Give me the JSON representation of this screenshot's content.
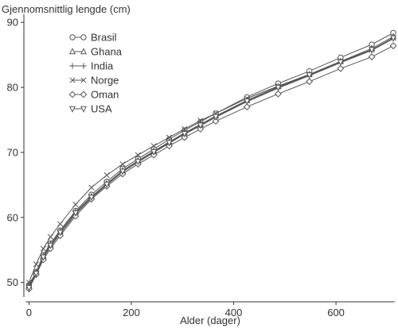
{
  "chart_data": {
    "type": "line",
    "ylabel": "Gjennomsnittlig lengde (cm)",
    "xlabel": "Alder (dager)",
    "xlim": [
      -10,
      715
    ],
    "ylim": [
      48,
      91
    ],
    "xticks": [
      0,
      200,
      400,
      600
    ],
    "yticks": [
      50,
      60,
      70,
      80,
      90
    ],
    "grid": false,
    "legend_position": "top-left",
    "line_color": "#555555",
    "x": [
      0,
      14,
      28,
      42,
      61,
      91,
      122,
      152,
      183,
      213,
      244,
      274,
      304,
      335,
      365,
      426,
      487,
      548,
      609,
      670,
      712
    ],
    "series": [
      {
        "name": "Brasil",
        "marker": "circle",
        "values": [
          49.6,
          51.6,
          54.2,
          56.0,
          58.0,
          61.0,
          63.5,
          65.5,
          67.5,
          69.0,
          70.5,
          72.0,
          73.4,
          74.7,
          76.0,
          78.5,
          80.6,
          82.5,
          84.6,
          86.6,
          88.4
        ]
      },
      {
        "name": "Ghana",
        "marker": "triangle-up",
        "values": [
          49.5,
          51.5,
          54.0,
          55.8,
          57.8,
          60.8,
          63.2,
          65.2,
          67.2,
          68.7,
          70.2,
          71.6,
          73.0,
          74.3,
          75.6,
          78.0,
          80.1,
          82.0,
          84.0,
          86.0,
          87.8
        ]
      },
      {
        "name": "India",
        "marker": "plus",
        "values": [
          49.3,
          51.3,
          53.8,
          55.5,
          57.5,
          60.5,
          63.0,
          65.0,
          67.0,
          68.5,
          70.0,
          71.4,
          72.8,
          74.1,
          75.4,
          77.8,
          79.9,
          81.8,
          83.8,
          85.7,
          87.5
        ]
      },
      {
        "name": "Norge",
        "marker": "cross",
        "values": [
          50.0,
          52.8,
          55.2,
          57.0,
          59.0,
          62.0,
          64.6,
          66.5,
          68.2,
          69.6,
          71.0,
          72.3,
          73.6,
          74.9,
          76.0,
          78.3,
          80.2,
          82.0,
          84.0,
          85.8,
          87.6
        ]
      },
      {
        "name": "Oman",
        "marker": "diamond",
        "values": [
          49.0,
          51.2,
          53.5,
          55.2,
          57.2,
          60.2,
          62.8,
          64.8,
          66.7,
          68.2,
          69.6,
          71.0,
          72.3,
          73.6,
          74.8,
          77.0,
          79.0,
          80.9,
          82.9,
          84.7,
          86.4
        ]
      },
      {
        "name": "USA",
        "marker": "triangle-down",
        "values": [
          49.2,
          51.4,
          53.9,
          55.7,
          57.7,
          60.7,
          63.1,
          65.1,
          67.1,
          68.6,
          70.1,
          71.5,
          72.9,
          74.2,
          75.5,
          77.9,
          80.0,
          81.9,
          83.9,
          85.8,
          87.6
        ]
      }
    ]
  }
}
